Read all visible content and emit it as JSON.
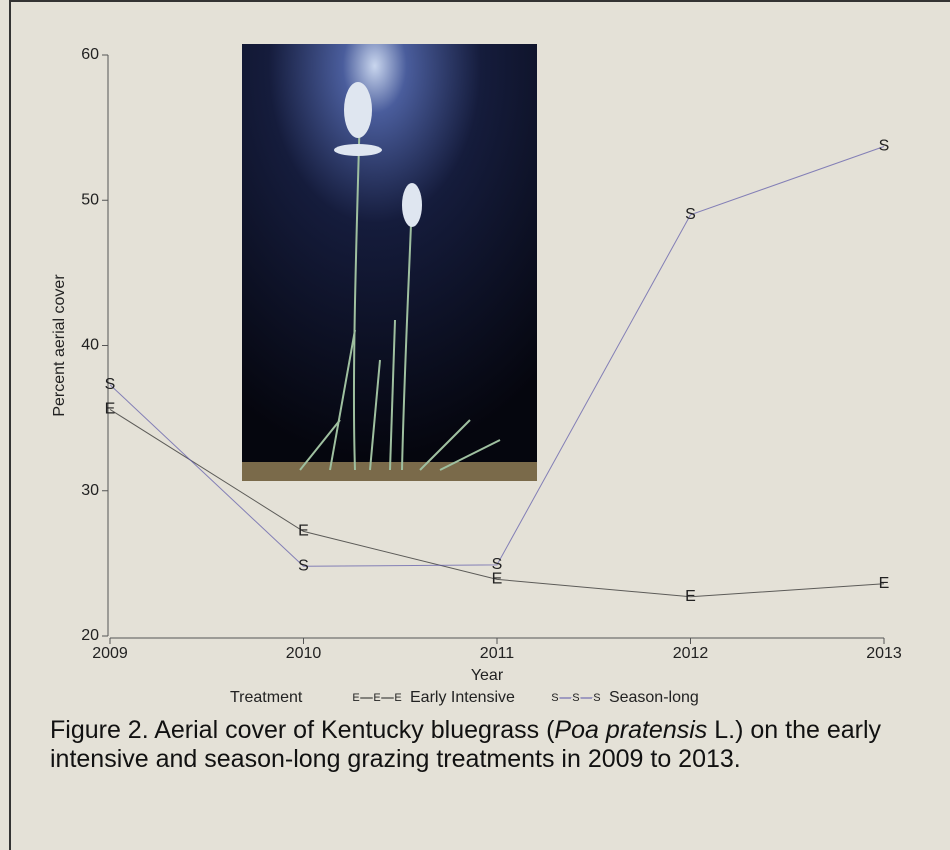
{
  "chart_data": {
    "type": "line",
    "y_label": "Percent aerial cover",
    "x_label": "Year",
    "legend_title": "Treatment",
    "x": [
      2009,
      2010,
      2011,
      2012,
      2013
    ],
    "series": [
      {
        "name": "Early Intensive",
        "marker": "E",
        "color": "#222222",
        "values": [
          35.6,
          27.2,
          23.9,
          22.7,
          23.6
        ]
      },
      {
        "name": "Season-long",
        "marker": "S",
        "color": "#5a55a8",
        "values": [
          37.3,
          24.8,
          24.9,
          49.0,
          53.7
        ]
      }
    ],
    "xlim": [
      2009,
      2013
    ],
    "xticks": [
      2009,
      2010,
      2011,
      2012,
      2013
    ],
    "ylim": [
      20,
      60
    ],
    "yticks": [
      20,
      30,
      40,
      50,
      60
    ],
    "grid": false
  },
  "caption": {
    "parts": [
      "Figure 2. Aerial cover of Kentucky bluegrass (",
      "Poa pratensis",
      " L.) on the early intensive and season-long grazing treatments in 2009 to 2013."
    ]
  }
}
